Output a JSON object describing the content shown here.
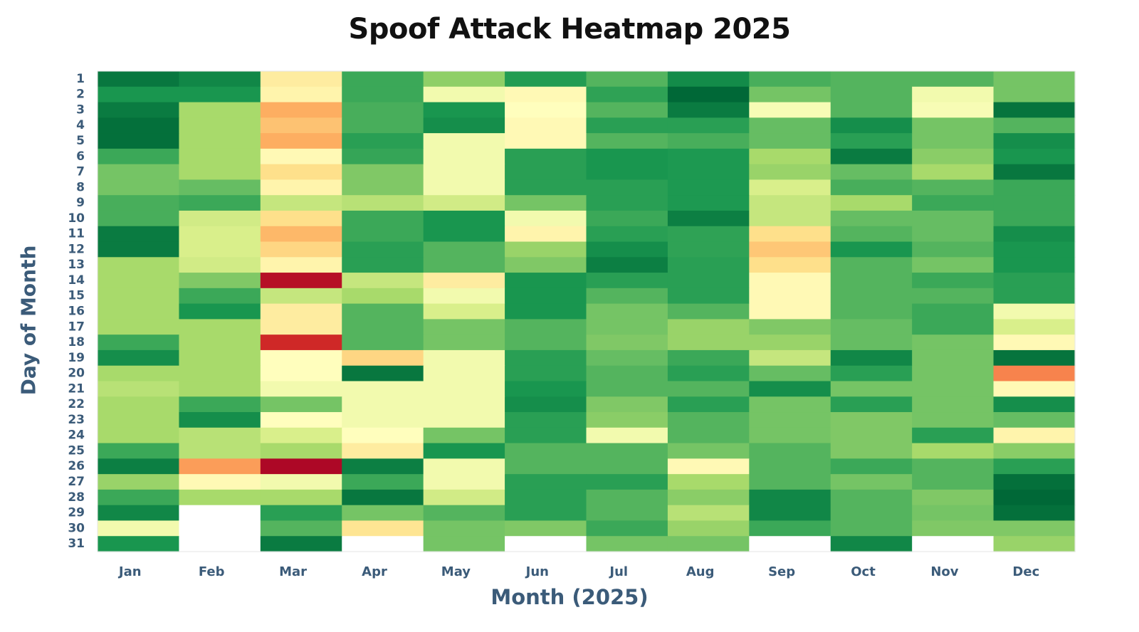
{
  "chart_data": {
    "type": "heatmap",
    "title": "Spoof Attack Heatmap 2025",
    "xlabel": "Month (2025)",
    "ylabel": "Day of Month",
    "x_categories": [
      "Jan",
      "Feb",
      "Mar",
      "Apr",
      "May",
      "Jun",
      "Jul",
      "Aug",
      "Sep",
      "Oct",
      "Nov",
      "Dec"
    ],
    "y_categories": [
      "1",
      "2",
      "3",
      "4",
      "5",
      "6",
      "7",
      "8",
      "9",
      "10",
      "11",
      "12",
      "13",
      "14",
      "15",
      "16",
      "17",
      "18",
      "19",
      "20",
      "21",
      "22",
      "23",
      "24",
      "25",
      "26",
      "27",
      "28",
      "29",
      "30",
      "31"
    ],
    "colormap": "RdYlGn_r",
    "value_range": [
      0,
      1
    ],
    "missing_color": "#ffffff",
    "values": [
      [
        0.04,
        0.08,
        0.65,
        0.18,
        0.33,
        0.14,
        0.22,
        0.09,
        0.2,
        0.22,
        0.22,
        0.28
      ],
      [
        0.12,
        0.12,
        0.62,
        0.18,
        0.55,
        0.6,
        0.16,
        0.0,
        0.28,
        0.22,
        0.55,
        0.28
      ],
      [
        0.05,
        0.38,
        0.8,
        0.2,
        0.12,
        0.58,
        0.22,
        0.05,
        0.56,
        0.22,
        0.56,
        0.03
      ],
      [
        0.02,
        0.38,
        0.76,
        0.2,
        0.1,
        0.6,
        0.15,
        0.15,
        0.25,
        0.1,
        0.28,
        0.22
      ],
      [
        0.02,
        0.38,
        0.8,
        0.15,
        0.55,
        0.6,
        0.22,
        0.2,
        0.25,
        0.15,
        0.28,
        0.1
      ],
      [
        0.18,
        0.38,
        0.6,
        0.17,
        0.55,
        0.15,
        0.12,
        0.13,
        0.38,
        0.05,
        0.32,
        0.12
      ],
      [
        0.28,
        0.38,
        0.7,
        0.3,
        0.55,
        0.15,
        0.12,
        0.13,
        0.35,
        0.25,
        0.38,
        0.04
      ],
      [
        0.28,
        0.25,
        0.62,
        0.3,
        0.55,
        0.15,
        0.15,
        0.13,
        0.5,
        0.2,
        0.22,
        0.18
      ],
      [
        0.2,
        0.18,
        0.45,
        0.42,
        0.48,
        0.28,
        0.15,
        0.13,
        0.45,
        0.38,
        0.18,
        0.18
      ],
      [
        0.2,
        0.48,
        0.7,
        0.18,
        0.12,
        0.55,
        0.18,
        0.06,
        0.45,
        0.25,
        0.25,
        0.18
      ],
      [
        0.05,
        0.5,
        0.78,
        0.18,
        0.12,
        0.62,
        0.15,
        0.16,
        0.7,
        0.22,
        0.25,
        0.1
      ],
      [
        0.05,
        0.5,
        0.72,
        0.15,
        0.22,
        0.35,
        0.1,
        0.16,
        0.75,
        0.12,
        0.22,
        0.12
      ],
      [
        0.38,
        0.48,
        0.62,
        0.15,
        0.22,
        0.3,
        0.06,
        0.15,
        0.7,
        0.22,
        0.28,
        0.12
      ],
      [
        0.38,
        0.3,
        0.98,
        0.45,
        0.65,
        0.12,
        0.15,
        0.15,
        0.6,
        0.22,
        0.18,
        0.15
      ],
      [
        0.38,
        0.18,
        0.45,
        0.38,
        0.55,
        0.12,
        0.22,
        0.15,
        0.6,
        0.22,
        0.22,
        0.15
      ],
      [
        0.38,
        0.12,
        0.65,
        0.22,
        0.5,
        0.12,
        0.28,
        0.22,
        0.6,
        0.22,
        0.18,
        0.55
      ],
      [
        0.38,
        0.38,
        0.65,
        0.22,
        0.28,
        0.22,
        0.28,
        0.35,
        0.3,
        0.25,
        0.18,
        0.5
      ],
      [
        0.18,
        0.38,
        0.95,
        0.22,
        0.28,
        0.22,
        0.3,
        0.35,
        0.35,
        0.25,
        0.28,
        0.6
      ],
      [
        0.1,
        0.38,
        0.58,
        0.72,
        0.55,
        0.15,
        0.25,
        0.18,
        0.45,
        0.08,
        0.28,
        0.03
      ],
      [
        0.38,
        0.38,
        0.58,
        0.04,
        0.55,
        0.15,
        0.22,
        0.15,
        0.25,
        0.15,
        0.28,
        0.85
      ],
      [
        0.42,
        0.38,
        0.55,
        0.55,
        0.55,
        0.12,
        0.22,
        0.22,
        0.1,
        0.28,
        0.28,
        0.6
      ],
      [
        0.38,
        0.18,
        0.28,
        0.55,
        0.55,
        0.1,
        0.3,
        0.15,
        0.28,
        0.15,
        0.28,
        0.1
      ],
      [
        0.38,
        0.1,
        0.58,
        0.55,
        0.55,
        0.15,
        0.32,
        0.22,
        0.28,
        0.3,
        0.28,
        0.25
      ],
      [
        0.38,
        0.42,
        0.5,
        0.58,
        0.28,
        0.15,
        0.55,
        0.22,
        0.28,
        0.3,
        0.15,
        0.62
      ],
      [
        0.18,
        0.42,
        0.38,
        0.65,
        0.12,
        0.22,
        0.22,
        0.28,
        0.22,
        0.3,
        0.38,
        0.32
      ],
      [
        0.06,
        0.82,
        0.99,
        0.06,
        0.55,
        0.22,
        0.22,
        0.6,
        0.22,
        0.18,
        0.22,
        0.15
      ],
      [
        0.35,
        0.6,
        0.55,
        0.18,
        0.55,
        0.15,
        0.15,
        0.38,
        0.22,
        0.28,
        0.22,
        0.02
      ],
      [
        0.18,
        0.38,
        0.38,
        0.04,
        0.48,
        0.15,
        0.22,
        0.32,
        0.08,
        0.22,
        0.3,
        0.0
      ],
      [
        0.08,
        null,
        0.15,
        0.28,
        0.22,
        0.15,
        0.22,
        0.42,
        0.08,
        0.22,
        0.28,
        0.02
      ],
      [
        0.55,
        null,
        0.22,
        0.68,
        0.28,
        0.3,
        0.18,
        0.35,
        0.18,
        0.22,
        0.3,
        0.3
      ],
      [
        0.12,
        null,
        0.05,
        null,
        0.28,
        null,
        0.28,
        0.28,
        null,
        0.08,
        null,
        0.35
      ]
    ]
  }
}
